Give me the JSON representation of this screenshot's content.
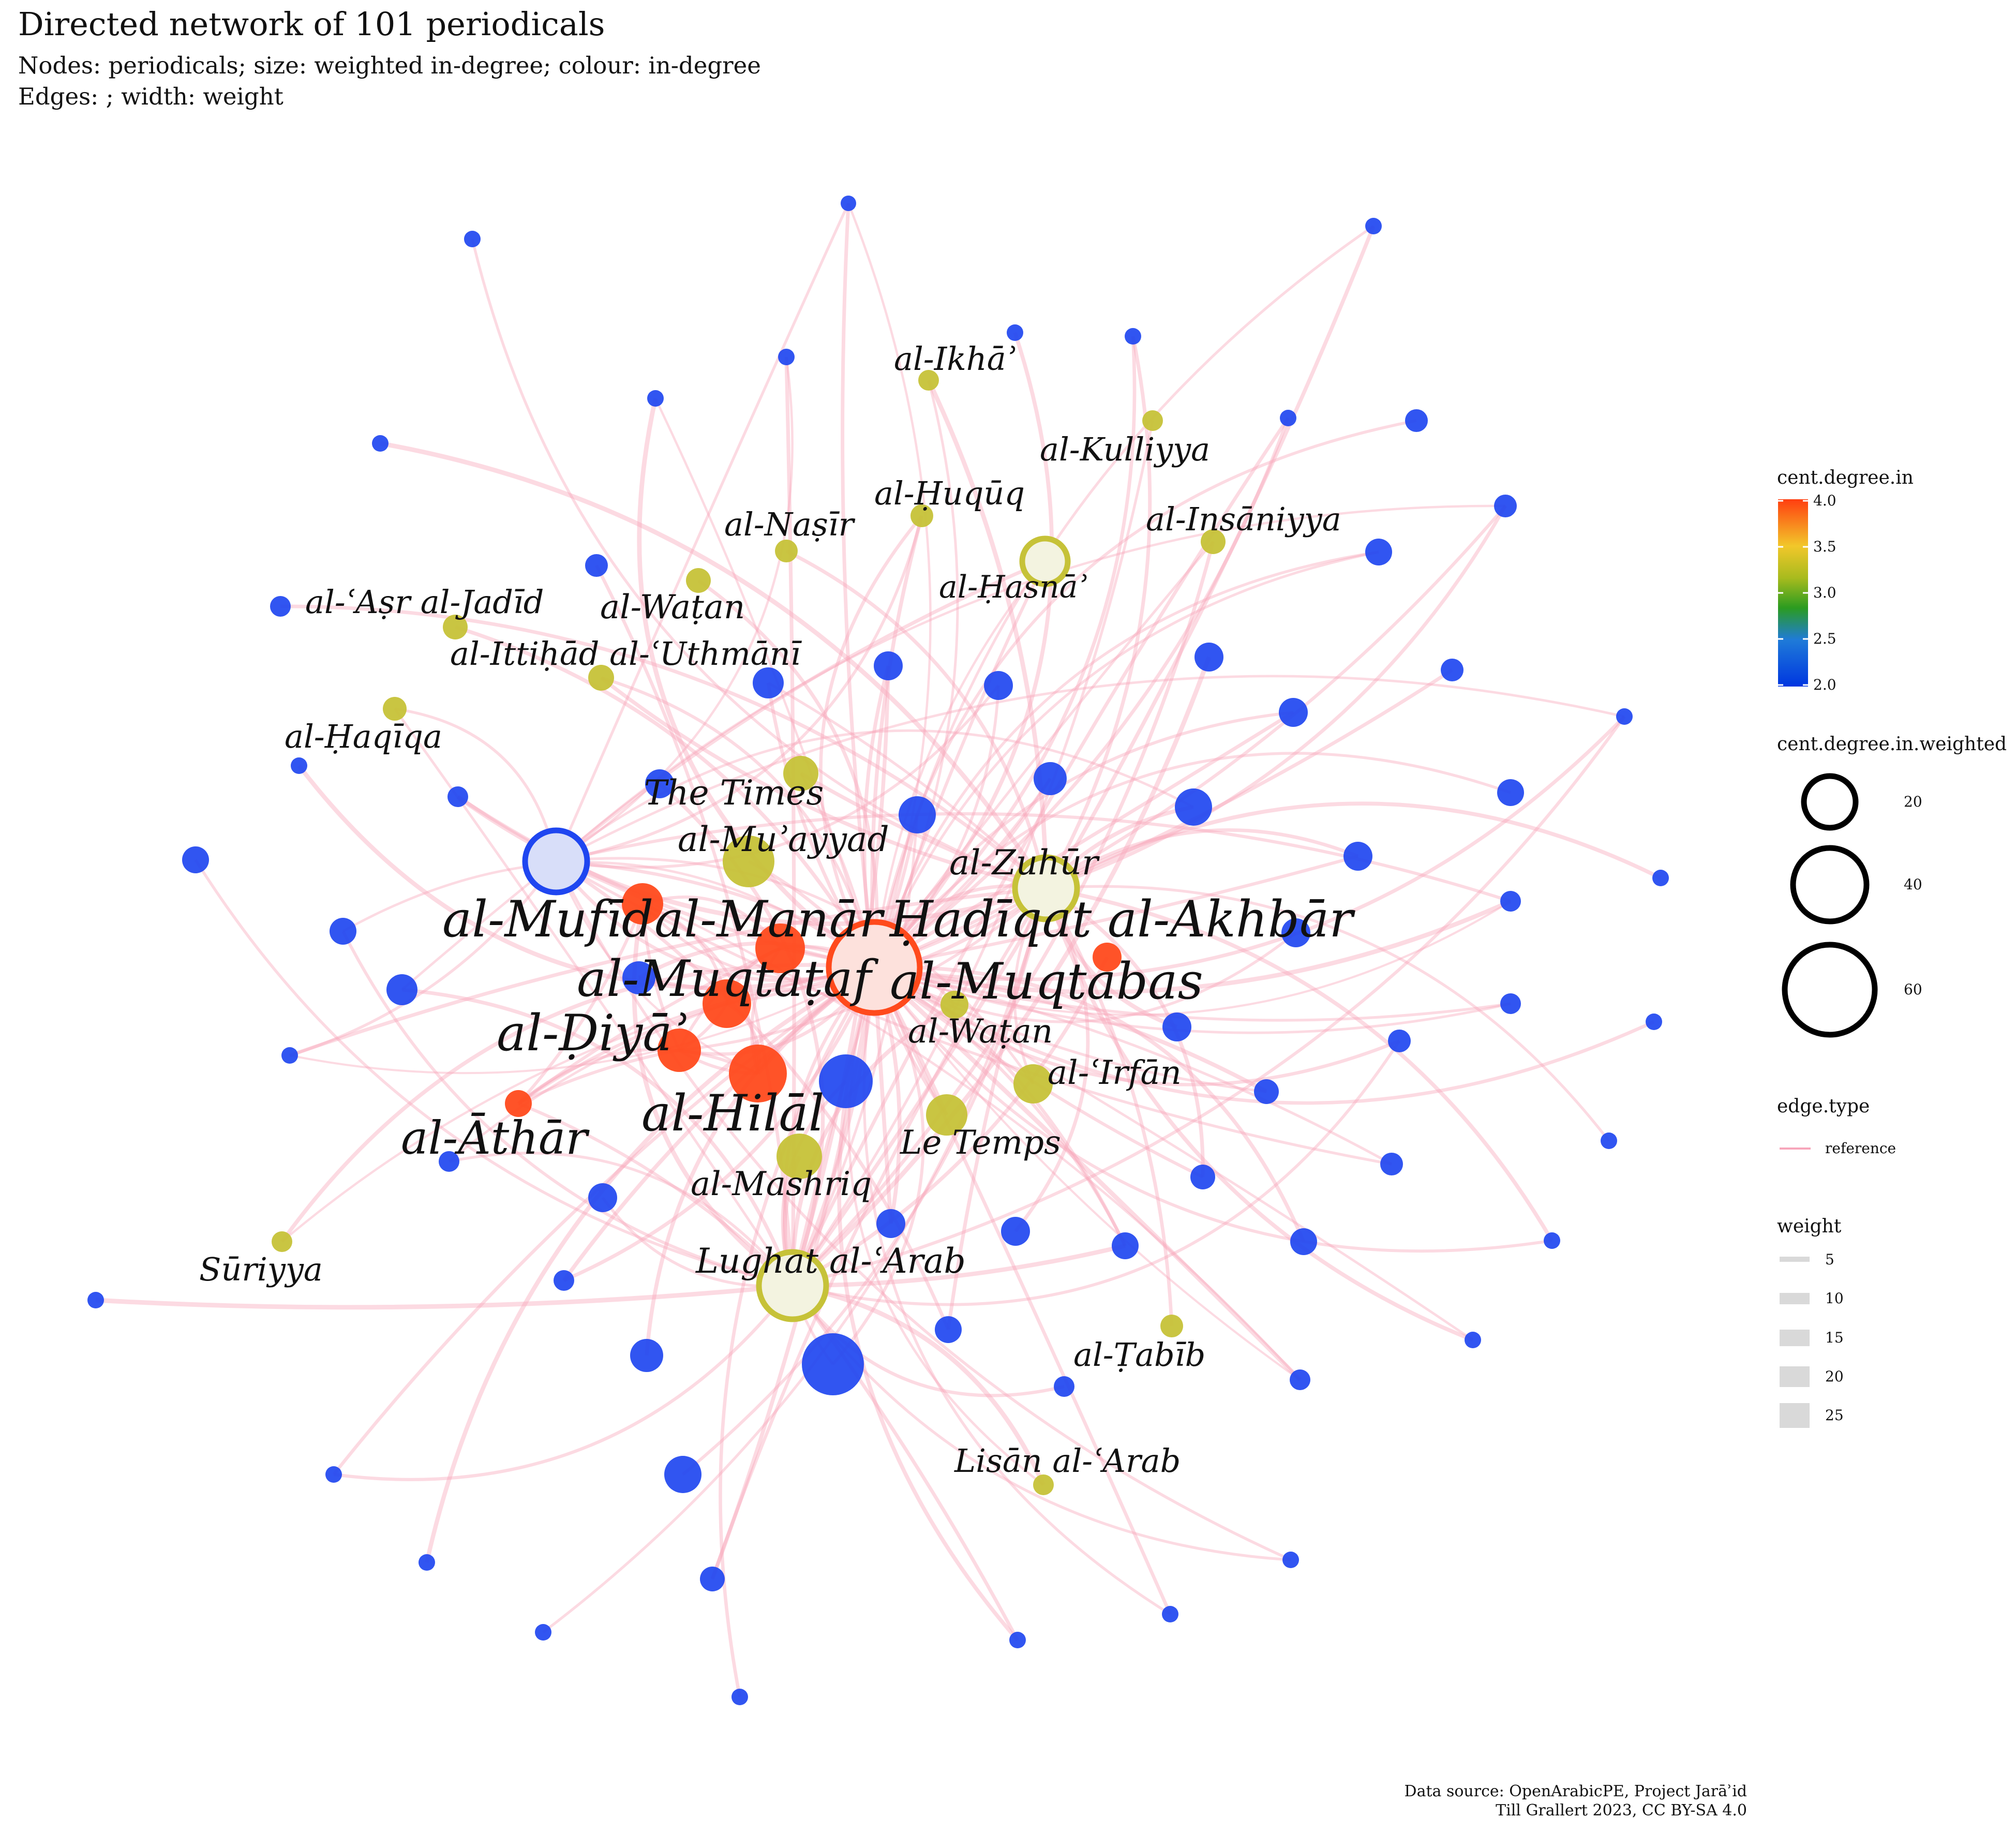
{
  "title": "Directed network of 101 periodicals",
  "subtitle_line1": "Nodes: periodicals; size: weighted in-degree; colour: in-degree",
  "subtitle_line2": "Edges: ; width: weight",
  "caption_line1": "Data source: OpenArabicPE, Project Jarāʾid",
  "caption_line2": "Till Grallert 2023, CC BY-SA 4.0",
  "colors": {
    "low": "#1f46f0",
    "mid": "#c6c238",
    "high": "#ff4a1c",
    "edge": "#f7a6bb"
  },
  "legend": {
    "color_title": "cent.degree.in",
    "color_ticks": [
      "4.0",
      "3.5",
      "3.0",
      "2.5",
      "2.0"
    ],
    "size_title": "cent.degree.in.weighted",
    "size_values": [
      "20",
      "40",
      "60"
    ],
    "edge_title": "edge.type",
    "edge_value": "reference",
    "weight_title": "weight",
    "weight_values": [
      "5",
      "10",
      "15",
      "20",
      "25"
    ]
  },
  "labeled_nodes": [
    {
      "name": "Ḥadīqat al-Akhbār",
      "degree": 4,
      "size": 72
    },
    {
      "name": "al-Muqtabas",
      "degree": 4,
      "size": 28
    },
    {
      "name": "al-Manār",
      "degree": 4,
      "size": 22
    },
    {
      "name": "al-Muqtaṭaf",
      "degree": 4,
      "size": 20
    },
    {
      "name": "al-Mufīd",
      "degree": 4,
      "size": 16
    },
    {
      "name": "al-Hilāl",
      "degree": 4,
      "size": 24
    },
    {
      "name": "al-Ḍiyāʾ",
      "degree": 4,
      "size": 18
    },
    {
      "name": "al-Āthār",
      "degree": 4,
      "size": 12
    },
    {
      "name": "Lughat al-ʿArab",
      "degree": 3,
      "size": 40
    },
    {
      "name": "al-Zuhūr",
      "degree": 3,
      "size": 36
    },
    {
      "name": "al-Ḥasnāʾ",
      "degree": 3,
      "size": 26
    },
    {
      "name": "al-Muʾayyad",
      "degree": 3,
      "size": 22
    },
    {
      "name": "The Times",
      "degree": 3,
      "size": 16
    },
    {
      "name": "al-Mashriq",
      "degree": 3,
      "size": 20
    },
    {
      "name": "Le Temps",
      "degree": 3,
      "size": 18
    },
    {
      "name": "al-ʿIrfān",
      "degree": 3,
      "size": 18
    },
    {
      "name": "al-Waṭan",
      "degree": 3,
      "size": 12
    },
    {
      "name": "al-Waṭan",
      "degree": 3,
      "size": 10
    },
    {
      "name": "al-Ikhāʾ",
      "degree": 3,
      "size": 9
    },
    {
      "name": "al-Kulliyya",
      "degree": 3,
      "size": 9
    },
    {
      "name": "al-Ḥuqūq",
      "degree": 3,
      "size": 9
    },
    {
      "name": "al-Naṣīr",
      "degree": 3,
      "size": 9
    },
    {
      "name": "al-Insāniyya",
      "degree": 3,
      "size": 10
    },
    {
      "name": "al-ʿAṣr al-Jadīd",
      "degree": 3,
      "size": 10
    },
    {
      "name": "al-Ittiḥād al-ʿUthmānī",
      "degree": 3,
      "size": 11
    },
    {
      "name": "al-Ḥaqīqa",
      "degree": 3,
      "size": 10
    },
    {
      "name": "Sūriyya",
      "degree": 3,
      "size": 9
    },
    {
      "name": "al-Ṭabīb",
      "degree": 3,
      "size": 9
    },
    {
      "name": "Lisān al-ʿArab",
      "degree": 3,
      "size": 9
    }
  ]
}
